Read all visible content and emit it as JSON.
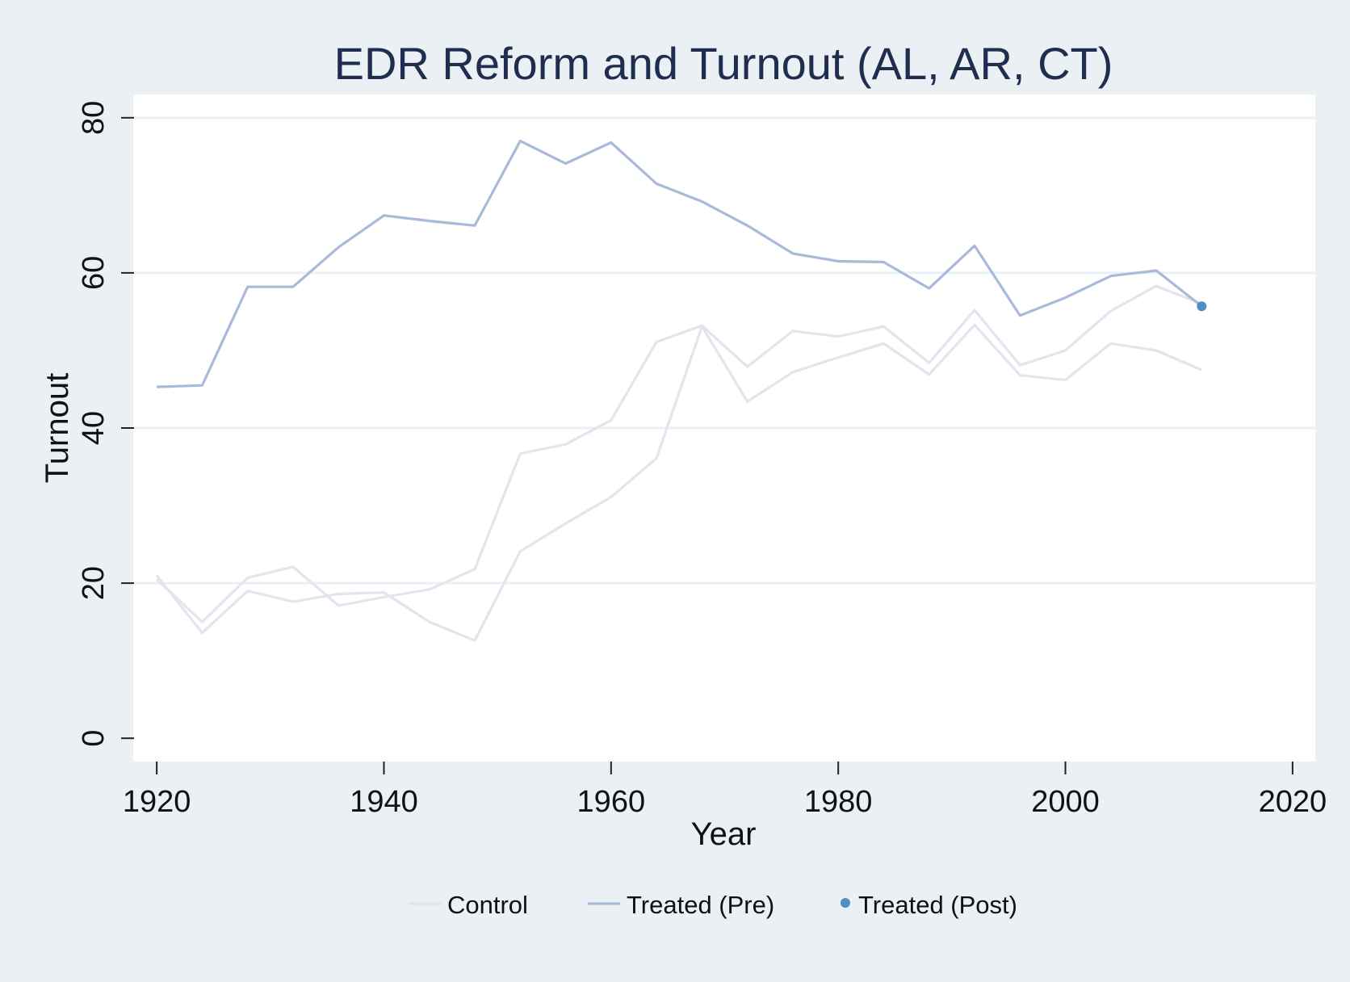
{
  "chart_data": {
    "type": "line",
    "title": "EDR Reform and Turnout (AL, AR, CT)",
    "xlabel": "Year",
    "ylabel": "Turnout",
    "xlim": [
      1918,
      2022
    ],
    "ylim": [
      -3,
      83
    ],
    "x_ticks": [
      1920,
      1940,
      1960,
      1980,
      2000,
      2020
    ],
    "y_ticks": [
      0,
      20,
      40,
      60,
      80
    ],
    "grid": "horizontal",
    "legend_position": "bottom",
    "legend": [
      "Control",
      "Treated (Pre)",
      "Treated (Post)"
    ],
    "colors": {
      "background": "#eaf0f3",
      "plot_background": "#ffffff",
      "grid": "#eaf0f3",
      "control": "#e4e4ef",
      "treated_pre": "#a9bad9",
      "treated_post": "#4f8fc3",
      "title": "#1f2d4f"
    },
    "series": [
      {
        "name": "Control",
        "style": "line",
        "color": "#e4e4ef",
        "x": [
          1920,
          1924,
          1928,
          1932,
          1936,
          1940,
          1944,
          1948,
          1952,
          1956,
          1960,
          1964,
          1968,
          1972,
          1976,
          1980,
          1984,
          1988,
          1992,
          1996,
          2000,
          2004,
          2008,
          2012
        ],
        "y": [
          21,
          13.6,
          19,
          17.6,
          18.6,
          18.8,
          15,
          12.6,
          24.1,
          27.7,
          31.1,
          36.1,
          53.1,
          43.4,
          47.2,
          49.1,
          50.9,
          46.9,
          53.3,
          46.8,
          46.2,
          50.9,
          50,
          47.5
        ]
      },
      {
        "name": "Control",
        "style": "line",
        "color": "#e4e4ef",
        "x": [
          1920,
          1924,
          1928,
          1932,
          1936,
          1940,
          1944,
          1948,
          1952,
          1956,
          1960,
          1964,
          1968,
          1972,
          1976,
          1980,
          1984,
          1988,
          1992,
          1996,
          2000,
          2004,
          2008,
          2012
        ],
        "y": [
          20.5,
          15,
          20.7,
          22.1,
          17.1,
          18.2,
          19.2,
          21.8,
          36.7,
          37.9,
          41,
          51.1,
          53.2,
          47.9,
          52.5,
          51.8,
          53.1,
          48.4,
          55.2,
          48.1,
          50,
          55.1,
          58.3,
          56
        ]
      },
      {
        "name": "Treated (Pre)",
        "style": "line",
        "color": "#a9bad9",
        "x": [
          1920,
          1924,
          1928,
          1932,
          1936,
          1940,
          1944,
          1948,
          1952,
          1956,
          1960,
          1964,
          1968,
          1972,
          1976,
          1980,
          1984,
          1988,
          1992,
          1996,
          2000,
          2004,
          2008,
          2012
        ],
        "y": [
          45.3,
          45.5,
          58.2,
          58.2,
          63.3,
          67.4,
          66.7,
          66.1,
          77,
          74.1,
          76.8,
          71.5,
          69.2,
          66.1,
          62.5,
          61.5,
          61.4,
          58,
          63.5,
          54.5,
          56.8,
          59.6,
          60.3,
          55.7
        ]
      },
      {
        "name": "Treated (Post)",
        "style": "point",
        "color": "#4f8fc3",
        "x": [
          2012
        ],
        "y": [
          55.7
        ]
      }
    ]
  }
}
